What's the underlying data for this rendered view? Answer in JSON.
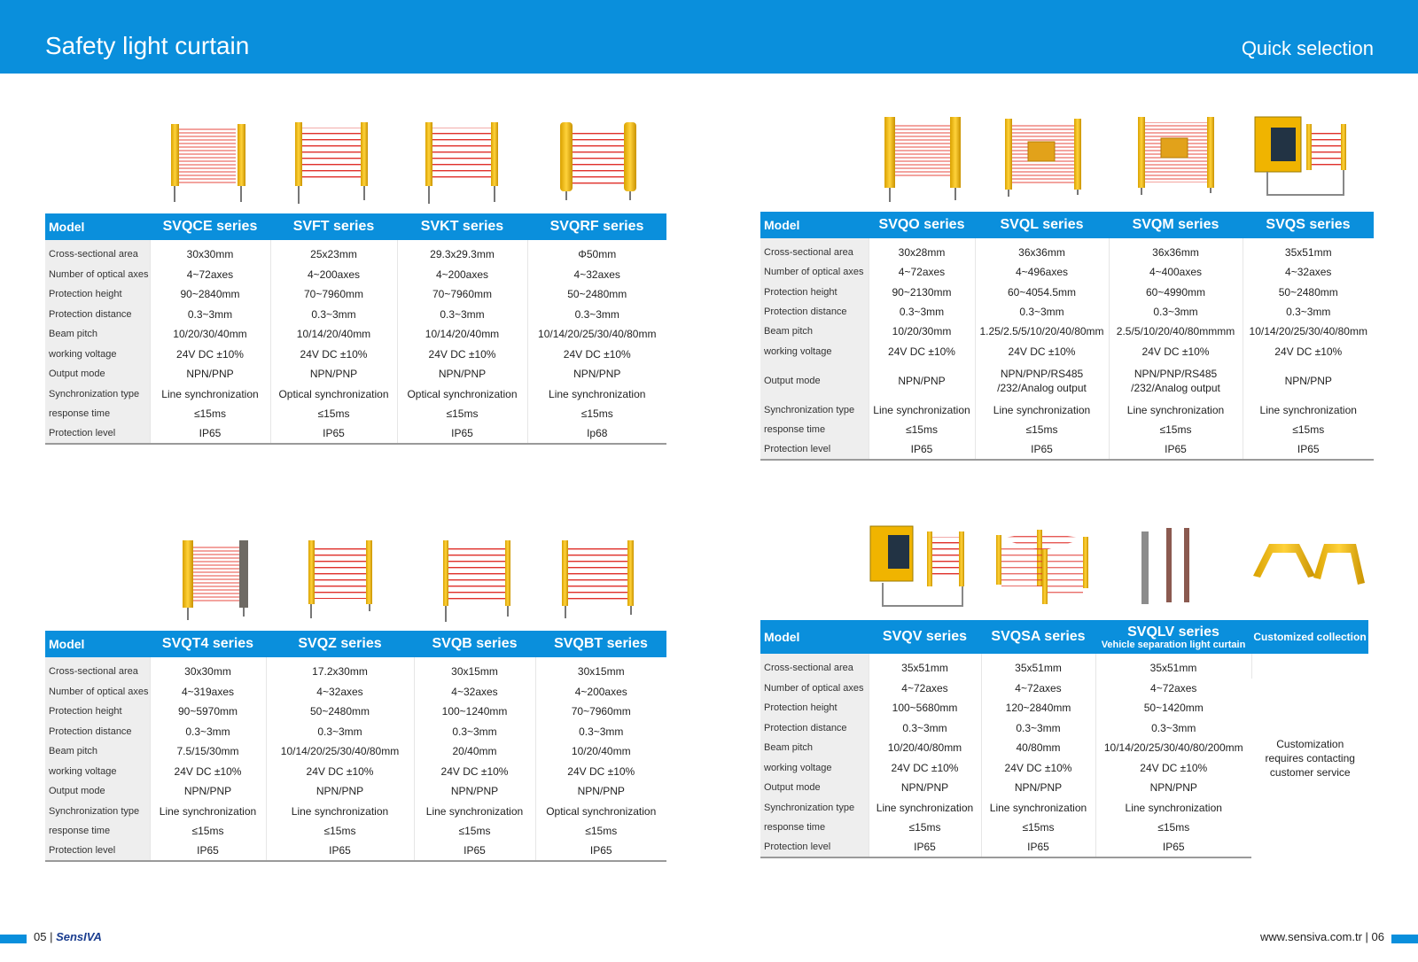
{
  "header": {
    "title": "Safety light curtain",
    "right": "Quick selection"
  },
  "row_labels": [
    "Cross-sectional area",
    "Number of optical axes",
    "Protection height",
    "Protection distance",
    "Beam pitch",
    "working voltage",
    "Output mode",
    "Synchronization type",
    "response time",
    "Protection level"
  ],
  "tables": [
    {
      "model_label": "Model",
      "series": [
        {
          "name": "SVQCE series",
          "values": [
            "30x30mm",
            "4~72axes",
            "90~2840mm",
            "0.3~3mm",
            "10/20/30/40mm",
            "24V DC ±10%",
            "NPN/PNP",
            "Line synchronization",
            "≤15ms",
            "IP65"
          ]
        },
        {
          "name": "SVFT series",
          "values": [
            "25x23mm",
            "4~200axes",
            "70~7960mm",
            "0.3~3mm",
            "10/14/20/40mm",
            "24V DC ±10%",
            "NPN/PNP",
            "Optical synchronization",
            "≤15ms",
            "IP65"
          ]
        },
        {
          "name": "SVKT series",
          "values": [
            "29.3x29.3mm",
            "4~200axes",
            "70~7960mm",
            "0.3~3mm",
            "10/14/20/40mm",
            "24V DC ±10%",
            "NPN/PNP",
            "Optical synchronization",
            "≤15ms",
            "IP65"
          ]
        },
        {
          "name": "SVQRF series",
          "values": [
            "Φ50mm",
            "4~32axes",
            "50~2480mm",
            "0.3~3mm",
            "10/14/20/25/30/40/80mm",
            "24V DC ±10%",
            "NPN/PNP",
            "Line synchronization",
            "≤15ms",
            "Ip68"
          ]
        }
      ]
    },
    {
      "model_label": "Model",
      "series": [
        {
          "name": "SVQO series",
          "values": [
            "30x28mm",
            "4~72axes",
            "90~2130mm",
            "0.3~3mm",
            "10/20/30mm",
            "24V DC ±10%",
            "NPN/PNP",
            "Line synchronization",
            "≤15ms",
            "IP65"
          ]
        },
        {
          "name": "SVQL series",
          "values": [
            "36x36mm",
            "4~496axes",
            "60~4054.5mm",
            "0.3~3mm",
            "1.25/2.5/5/10/20/40/80mm",
            "24V DC ±10%",
            "NPN/PNP/RS485 /232/Analog output",
            "Line synchronization",
            "≤15ms",
            "IP65"
          ]
        },
        {
          "name": "SVQM series",
          "values": [
            "36x36mm",
            "4~400axes",
            "60~4990mm",
            "0.3~3mm",
            "2.5/5/10/20/40/80mmmm",
            "24V DC ±10%",
            "NPN/PNP/RS485 /232/Analog output",
            "Line synchronization",
            "≤15ms",
            "IP65"
          ]
        },
        {
          "name": "SVQS series",
          "values": [
            "35x51mm",
            "4~32axes",
            "50~2480mm",
            "0.3~3mm",
            "10/14/20/25/30/40/80mm",
            "24V DC ±10%",
            "NPN/PNP",
            "Line synchronization",
            "≤15ms",
            "IP65"
          ]
        }
      ]
    },
    {
      "model_label": "Model",
      "series": [
        {
          "name": "SVQT4 series",
          "values": [
            "30x30mm",
            "4~319axes",
            "90~5970mm",
            "0.3~3mm",
            "7.5/15/30mm",
            "24V DC ±10%",
            "NPN/PNP",
            "Line synchronization",
            "≤15ms",
            "IP65"
          ]
        },
        {
          "name": "SVQZ series",
          "values": [
            "17.2x30mm",
            "4~32axes",
            "50~2480mm",
            "0.3~3mm",
            "10/14/20/25/30/40/80mm",
            "24V DC ±10%",
            "NPN/PNP",
            "Line synchronization",
            "≤15ms",
            "IP65"
          ]
        },
        {
          "name": "SVQB series",
          "values": [
            "30x15mm",
            "4~32axes",
            "100~1240mm",
            "0.3~3mm",
            "20/40mm",
            "24V DC ±10%",
            "NPN/PNP",
            "Line synchronization",
            "≤15ms",
            "IP65"
          ]
        },
        {
          "name": "SVQBT series",
          "values": [
            "30x15mm",
            "4~200axes",
            "70~7960mm",
            "0.3~3mm",
            "10/20/40mm",
            "24V DC ±10%",
            "NPN/PNP",
            "Optical synchronization",
            "≤15ms",
            "IP65"
          ]
        }
      ]
    },
    {
      "model_label": "Model",
      "series": [
        {
          "name": "SVQV series",
          "values": [
            "35x51mm",
            "4~72axes",
            "100~5680mm",
            "0.3~3mm",
            "10/20/40/80mm",
            "24V DC ±10%",
            "NPN/PNP",
            "Line synchronization",
            "≤15ms",
            "IP65"
          ]
        },
        {
          "name": "SVQSA series",
          "values": [
            "35x51mm",
            "4~72axes",
            "120~2840mm",
            "0.3~3mm",
            "40/80mm",
            "24V DC ±10%",
            "NPN/PNP",
            "Line synchronization",
            "≤15ms",
            "IP65"
          ]
        },
        {
          "name": "SVQLV series",
          "subtitle": "Vehicle separation light curtain",
          "values": [
            "35x51mm",
            "4~72axes",
            "50~1420mm",
            "0.3~3mm",
            "10/14/20/25/30/40/80/200mm",
            "24V DC ±10%",
            "NPN/PNP",
            "Line synchronization",
            "≤15ms",
            "IP65"
          ]
        }
      ],
      "custom": {
        "name": "Customized collection",
        "text": "Customization requires contacting customer service"
      }
    }
  ],
  "footer": {
    "left_page": "05",
    "brand": "SensIVA",
    "url": "www.sensiva.com.tr",
    "right_page": "06"
  },
  "colors": {
    "header_blue": "#0a8fdc",
    "curtain_yellow": "#f3c21b",
    "beam_red": "#e0302a"
  }
}
